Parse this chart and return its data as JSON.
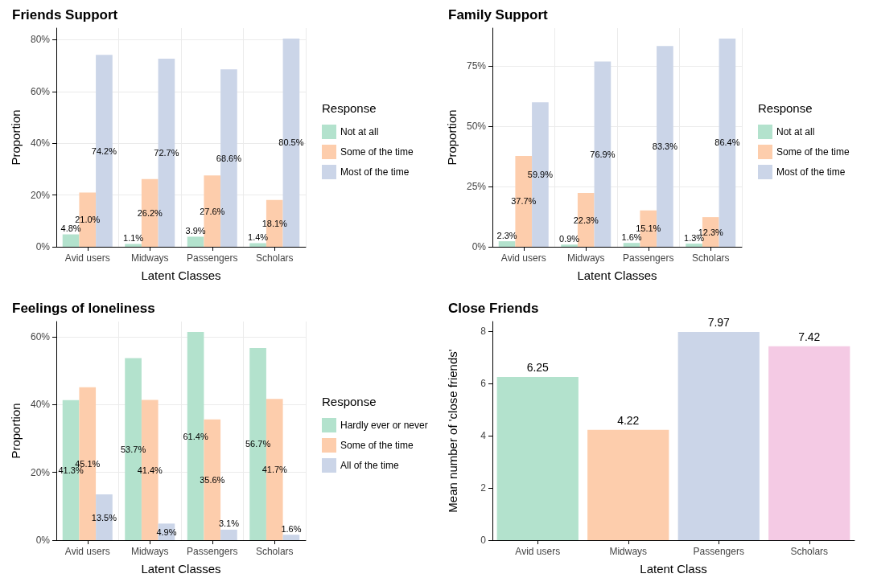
{
  "chart_data": [
    {
      "type": "bar",
      "title": "Friends Support",
      "xlabel": "Latent Classes",
      "ylabel": "Proportion",
      "legend_title": "Response",
      "legend": "right",
      "grid": true,
      "categories": [
        "Avid users",
        "Midways",
        "Passengers",
        "Scholars"
      ],
      "ylim": [
        0,
        84.5
      ],
      "yticks": [
        {
          "value": 0,
          "label": "0%"
        },
        {
          "value": 20,
          "label": "20%"
        },
        {
          "value": 40,
          "label": "40%"
        },
        {
          "value": 60,
          "label": "60%"
        },
        {
          "value": 80,
          "label": "80%"
        }
      ],
      "series": [
        {
          "name": "Not at all",
          "color": "#b3e2cd",
          "values": [
            4.8,
            1.1,
            3.9,
            1.4
          ],
          "value_labels": [
            "4.8%",
            "1.1%",
            "3.9%",
            "1.4%"
          ]
        },
        {
          "name": "Some of the time",
          "color": "#fdcdac",
          "values": [
            21.0,
            26.2,
            27.6,
            18.1
          ],
          "value_labels": [
            "21.0%",
            "26.2%",
            "27.6%",
            "18.1%"
          ]
        },
        {
          "name": "Most of the time",
          "color": "#cbd5e8",
          "values": [
            74.2,
            72.7,
            68.6,
            80.5
          ],
          "value_labels": [
            "74.2%",
            "72.7%",
            "68.6%",
            "80.5%"
          ]
        }
      ]
    },
    {
      "type": "bar",
      "title": "Family Support",
      "xlabel": "Latent Classes",
      "ylabel": "Proportion",
      "legend_title": "Response",
      "legend": "right",
      "grid": true,
      "categories": [
        "Avid users",
        "Midways",
        "Passengers",
        "Scholars"
      ],
      "ylim": [
        0,
        90.7
      ],
      "yticks": [
        {
          "value": 0,
          "label": "0%"
        },
        {
          "value": 25,
          "label": "25%"
        },
        {
          "value": 50,
          "label": "50%"
        },
        {
          "value": 75,
          "label": "75%"
        }
      ],
      "series": [
        {
          "name": "Not at all",
          "color": "#b3e2cd",
          "values": [
            2.3,
            0.9,
            1.6,
            1.3
          ],
          "value_labels": [
            "2.3%",
            "0.9%",
            "1.6%",
            "1.3%"
          ]
        },
        {
          "name": "Some of the time",
          "color": "#fdcdac",
          "values": [
            37.7,
            22.3,
            15.1,
            12.3
          ],
          "value_labels": [
            "37.7%",
            "22.3%",
            "15.1%",
            "12.3%"
          ]
        },
        {
          "name": "Most of the time",
          "color": "#cbd5e8",
          "values": [
            59.9,
            76.9,
            83.3,
            86.4
          ],
          "value_labels": [
            "59.9%",
            "76.9%",
            "83.3%",
            "86.4%"
          ]
        }
      ]
    },
    {
      "type": "bar",
      "title": "Feelings of loneliness",
      "xlabel": "Latent Classes",
      "ylabel": "Proportion",
      "legend_title": "Response",
      "legend": "right",
      "grid": true,
      "categories": [
        "Avid users",
        "Midways",
        "Passengers",
        "Scholars"
      ],
      "ylim": [
        0,
        64.5
      ],
      "yticks": [
        {
          "value": 0,
          "label": "0%"
        },
        {
          "value": 20,
          "label": "20%"
        },
        {
          "value": 40,
          "label": "40%"
        },
        {
          "value": 60,
          "label": "60%"
        }
      ],
      "series": [
        {
          "name": "Hardly ever or never",
          "color": "#b3e2cd",
          "values": [
            41.3,
            53.7,
            61.4,
            56.7
          ],
          "value_labels": [
            "41.3%",
            "53.7%",
            "61.4%",
            "56.7%"
          ]
        },
        {
          "name": "Some of the time",
          "color": "#fdcdac",
          "values": [
            45.1,
            41.4,
            35.6,
            41.7
          ],
          "value_labels": [
            "45.1%",
            "41.4%",
            "35.6%",
            "41.7%"
          ]
        },
        {
          "name": "All of the time",
          "color": "#cbd5e8",
          "values": [
            13.5,
            4.9,
            3.1,
            1.6
          ],
          "value_labels": [
            "13.5%",
            "4.9%",
            "3.1%",
            "1.6%"
          ]
        }
      ]
    },
    {
      "type": "bar",
      "title": "Close Friends",
      "xlabel": "Latent Class",
      "ylabel": "Mean number of 'close friends'",
      "data_labels": true,
      "categories": [
        "Avid users",
        "Midways",
        "Passengers",
        "Scholars"
      ],
      "ylim": [
        0,
        8.37
      ],
      "yticks": [
        0,
        2,
        4,
        6,
        8
      ],
      "values": [
        6.25,
        4.22,
        7.97,
        7.42
      ],
      "colors": [
        "#b3e2cd",
        "#fdcdac",
        "#cbd5e8",
        "#f4cae4"
      ]
    }
  ]
}
